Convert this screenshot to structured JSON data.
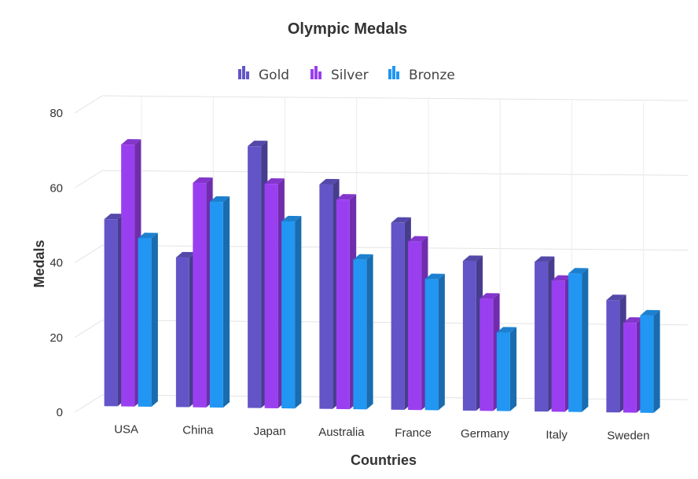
{
  "chart_data": {
    "type": "bar",
    "title": "Olympic Medals",
    "xlabel": "Countries",
    "ylabel": "Medals",
    "categories": [
      "USA",
      "China",
      "Japan",
      "Australia",
      "France",
      "Germany",
      "Italy",
      "Sweden"
    ],
    "series": [
      {
        "name": "Gold",
        "color": "#6355C7",
        "values": [
          50,
          40,
          70,
          60,
          50,
          40,
          40,
          30
        ]
      },
      {
        "name": "Silver",
        "color": "#9A3FF0",
        "values": [
          70,
          60,
          60,
          56,
          45,
          30,
          35,
          24
        ]
      },
      {
        "name": "Bronze",
        "color": "#2196F3",
        "values": [
          45,
          55,
          50,
          40,
          35,
          21,
          37,
          26
        ]
      }
    ],
    "ylim": [
      0,
      80
    ],
    "yticks": [
      0,
      20,
      40,
      60,
      80
    ],
    "grid": true,
    "legend_position": "top",
    "style": "3d-column"
  }
}
